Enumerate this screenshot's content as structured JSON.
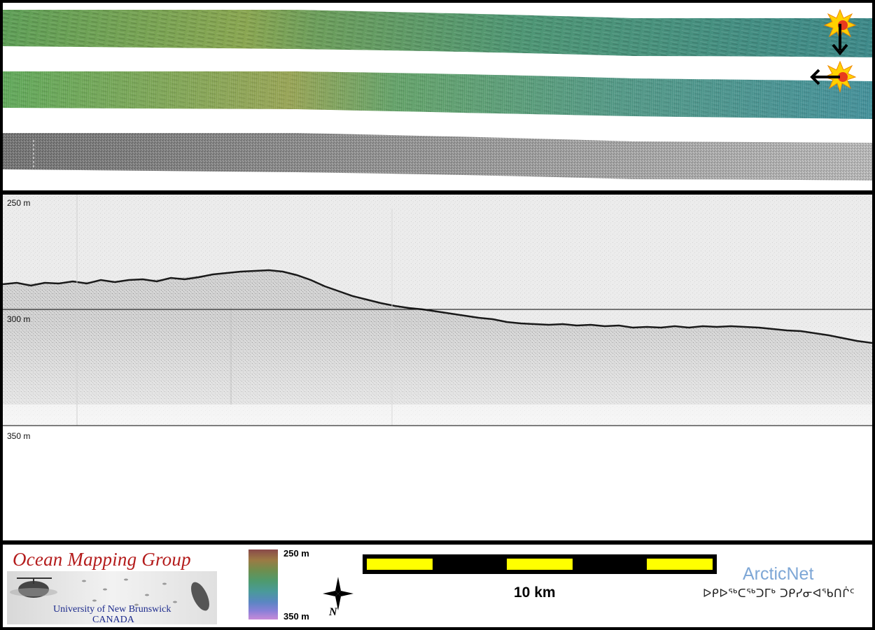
{
  "profile": {
    "depth_labels": [
      "250 m",
      "300 m",
      "350 m"
    ]
  },
  "legend": {
    "ocean_mapping": {
      "title": "Ocean Mapping Group",
      "university": "University of New Brunswick",
      "country": "CANADA"
    },
    "colorbar": {
      "top_label": "250 m",
      "bottom_label": "350 m"
    },
    "north_arrow_label": "N",
    "scale_bar_label": "10 km",
    "arcticnet": {
      "title": "ArcticNet",
      "inuktitut": "ᐅᑭᐅᖅᑕᖅᑐᒥᒃ ᑐᑭᓯᓂᐊᖃᑎᒌᑦ"
    }
  },
  "icons": [
    "sun-icon",
    "arrow-down-icon",
    "arrow-left-icon",
    "north-star-icon",
    "sonar-fish-icon"
  ]
}
